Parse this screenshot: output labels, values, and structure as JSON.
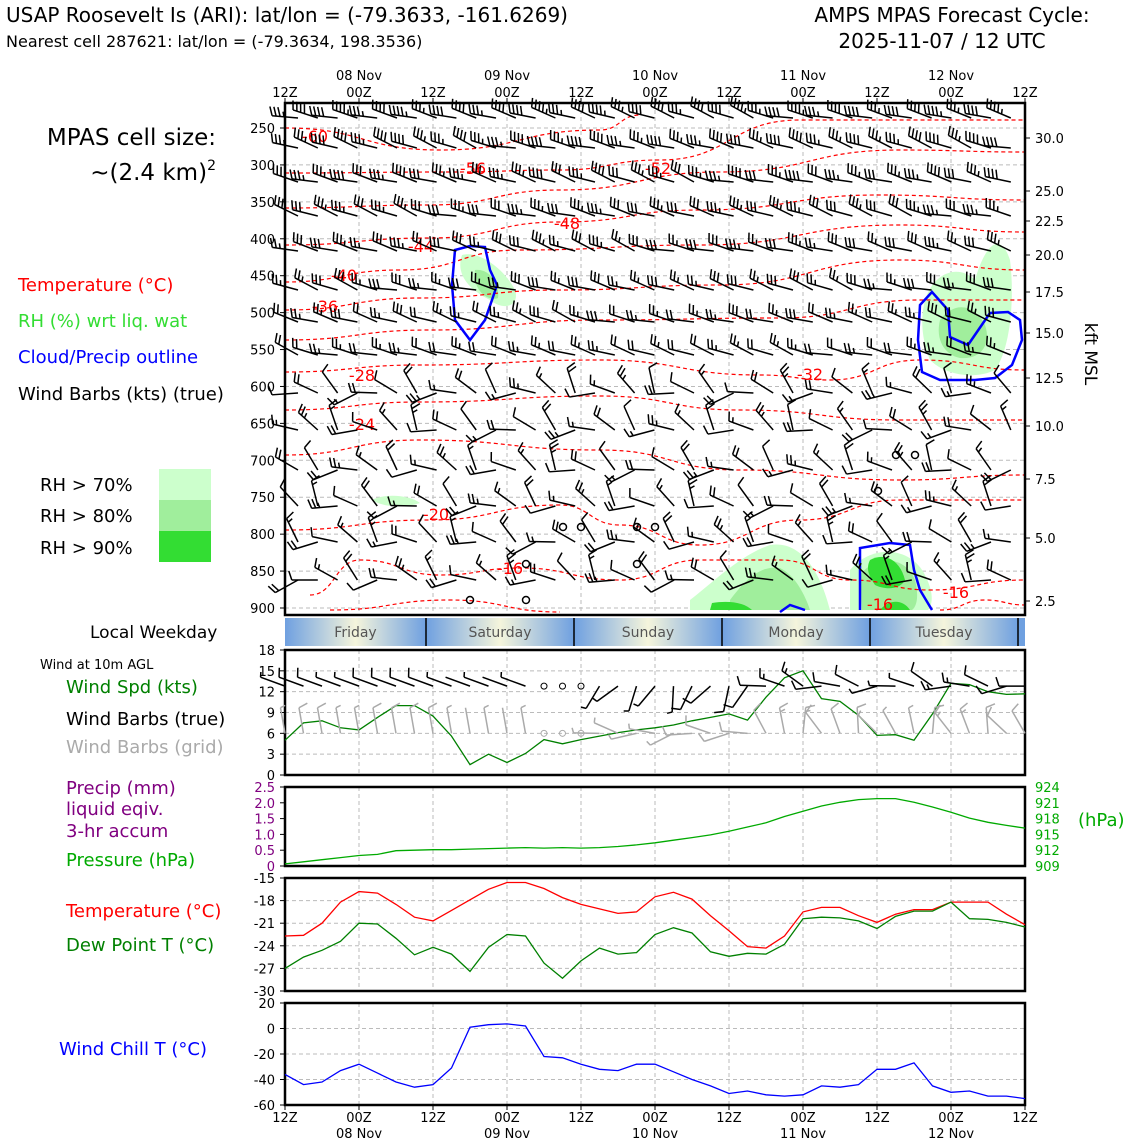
{
  "header": {
    "title_left": "USAP Roosevelt Is (ARI): lat/lon = (-79.3633, -161.6269)",
    "subtitle_left": "Nearest cell 287621: lat/lon = (-79.3634, 198.3536)",
    "title_right_1": "AMPS MPAS Forecast Cycle:",
    "title_right_2": "2025-11-07 / 12 UTC"
  },
  "left_labels": {
    "cell_size_1": "MPAS cell size:",
    "cell_size_2": "~(2.4 km)",
    "cell_size_sup": "2",
    "legend_temp": "Temperature (°C)",
    "legend_rh": "RH (%) wrt liq. wat",
    "legend_cloud": "Cloud/Precip outline",
    "legend_wind": "Wind Barbs (kts) (true)",
    "rh70": "RH > 70%",
    "rh80": "RH > 80%",
    "rh90": "RH > 90%",
    "local_weekday": "Local Weekday",
    "wind10m": "Wind at 10m AGL",
    "wind_spd": "Wind Spd (kts)",
    "wind_barbs_true": "Wind Barbs (true)",
    "wind_barbs_grid": "Wind Barbs (grid)",
    "precip_1": "Precip (mm)",
    "precip_2": "liquid eqiv.",
    "precip_3": "3-hr accum",
    "pressure": "Pressure (hPa)",
    "temperature": "Temperature (°C)",
    "dewpoint": "Dew Point T (°C)",
    "windchill": "Wind Chill T (°C)",
    "hpa_unit": "(hPa)",
    "kft_unit": "kft MSL"
  },
  "colors": {
    "temperature": "#ff0000",
    "rh_text": "#33dd33",
    "cloud": "#0000ff",
    "rh70": "#ccffcc",
    "rh80": "#a0ee9c",
    "rh90": "#33dd33",
    "wind_spd": "#008000",
    "grid_barbs": "#aaaaaa",
    "precip": "#800080",
    "pressure": "#00aa00",
    "dewpoint": "#008000",
    "windchill": "#0000ff"
  },
  "time_axis": {
    "top_hours": [
      "12Z",
      "00Z",
      "12Z",
      "00Z",
      "12Z",
      "00Z",
      "12Z",
      "00Z",
      "12Z",
      "00Z",
      "12Z"
    ],
    "dates": [
      "08 Nov",
      "09 Nov",
      "10 Nov",
      "11 Nov",
      "12 Nov"
    ]
  },
  "weekdays": [
    "Friday",
    "Saturday",
    "Sunday",
    "Monday",
    "Tuesday"
  ],
  "chart_data": [
    {
      "type": "heatmap",
      "name": "cross-section",
      "pressure_levels": [
        "250",
        "300",
        "350",
        "400",
        "450",
        "500",
        "550",
        "600",
        "650",
        "700",
        "750",
        "800",
        "850",
        "900"
      ],
      "kft_ticks": [
        "30.0",
        "25.0",
        "22.5",
        "20.0",
        "17.5",
        "15.0",
        "12.5",
        "10.0",
        "7.5",
        "5.0",
        "2.5"
      ],
      "temperature_labels": [
        "-60",
        "-56",
        "-52",
        "-48",
        "-44",
        "-40",
        "-36",
        "-32",
        "-28",
        "-24",
        "-20",
        "-16",
        "-16",
        "-16"
      ]
    },
    {
      "type": "line",
      "name": "wind10m",
      "ylim": [
        0,
        18
      ],
      "yticks": [
        "0",
        "3",
        "6",
        "9",
        "12",
        "15",
        "18"
      ],
      "wind_spd": [
        5,
        7.5,
        7.8,
        6.8,
        6.5,
        8.3,
        10,
        10,
        8.5,
        5.6,
        1.5,
        3,
        1.8,
        3.1,
        5.1,
        4.5,
        5.1,
        5.6,
        6.1,
        6.5,
        6.8,
        7.2,
        7.8,
        8.3,
        8.8,
        7.9,
        11.2,
        14,
        15,
        11,
        10.6,
        8.6,
        5.7,
        5.8,
        5,
        8.8,
        13.2,
        13,
        12,
        11.6,
        11.7
      ]
    },
    {
      "type": "line",
      "name": "pressure",
      "precip_ylim": [
        0,
        2.5
      ],
      "precip_ticks": [
        "0",
        "0.5",
        "1.0",
        "1.5",
        "2.0",
        "2.5"
      ],
      "pressure_ticks": [
        "909",
        "912",
        "915",
        "918",
        "921",
        "924"
      ],
      "pressure": [
        909.4,
        909.8,
        910.2,
        910.6,
        911,
        911.2,
        911.9,
        912,
        912.1,
        912.1,
        912.2,
        912.3,
        912.4,
        912.5,
        912.4,
        912.5,
        912.4,
        912.5,
        912.7,
        913,
        913.4,
        913.9,
        914.4,
        914.9,
        915.6,
        916.4,
        917.2,
        918.4,
        919.4,
        920.4,
        921.1,
        921.6,
        921.8,
        921.8,
        921.1,
        920.2,
        919.2,
        918.1,
        917.3,
        916.7,
        916.2
      ]
    },
    {
      "type": "line",
      "name": "temperature",
      "ylim": [
        -30,
        -15
      ],
      "yticks": [
        "-15",
        "-18",
        "-21",
        "-24",
        "-27",
        "-30"
      ],
      "temperature": [
        -22.7,
        -22.6,
        -21,
        -18.2,
        -16.8,
        -17,
        -18.5,
        -20.2,
        -20.7,
        -19.3,
        -17.9,
        -16.5,
        -15.6,
        -15.6,
        -16.4,
        -17.6,
        -18.5,
        -19.1,
        -19.7,
        -19.5,
        -17.5,
        -16.9,
        -17.8,
        -20,
        -22,
        -24.1,
        -24.3,
        -22.7,
        -19.5,
        -18.9,
        -18.9,
        -20,
        -20.9,
        -19.8,
        -19.2,
        -19.2,
        -18.2,
        -18.2,
        -18.2,
        -19.8,
        -21.2
      ],
      "dewpoint": [
        -27,
        -25.5,
        -24.6,
        -23.4,
        -21,
        -21.1,
        -23,
        -25.2,
        -24.2,
        -25.1,
        -27.4,
        -24.2,
        -22.5,
        -22.7,
        -26.3,
        -28.3,
        -26,
        -24.3,
        -25.1,
        -24.9,
        -22.5,
        -21.6,
        -22.3,
        -24.8,
        -25.4,
        -25,
        -25.1,
        -23.8,
        -20.4,
        -20.2,
        -20.3,
        -20.7,
        -21.7,
        -20.1,
        -19.4,
        -19.4,
        -18.2,
        -20.4,
        -20.5,
        -20.9,
        -21.5
      ]
    },
    {
      "type": "line",
      "name": "windchill",
      "ylim": [
        -60,
        20
      ],
      "yticks": [
        "20",
        "0",
        "-20",
        "-40",
        "-60"
      ],
      "windchill": [
        -36,
        -44,
        -42,
        -33,
        -28,
        -35,
        -42,
        -46,
        -44,
        -31,
        1,
        3,
        3.6,
        2,
        -22,
        -23,
        -28,
        -32,
        -33,
        -28,
        -28,
        -34,
        -40,
        -45,
        -51,
        -49,
        -52,
        -53,
        -52,
        -45,
        -46,
        -44,
        -32,
        -32,
        -27,
        -45,
        -50,
        -49,
        -53,
        -53,
        -55
      ]
    }
  ]
}
